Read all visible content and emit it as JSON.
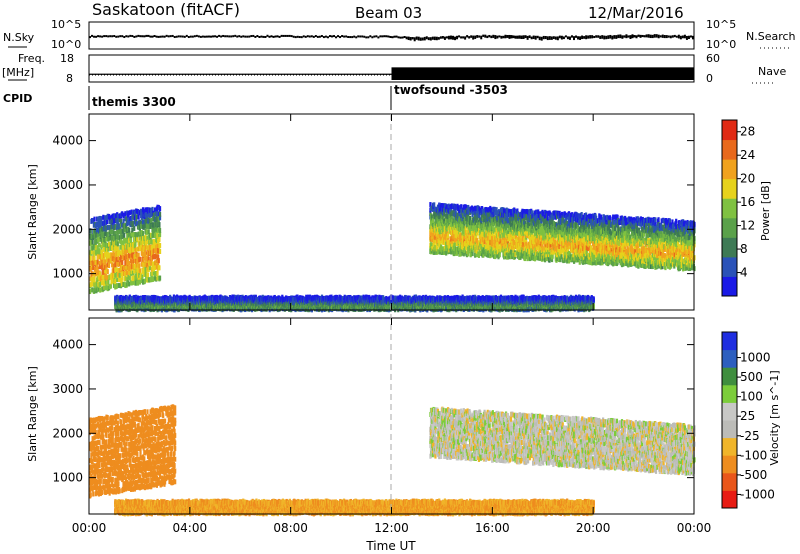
{
  "header": {
    "station": "Saskatoon (fitACF)",
    "beam": "Beam 03",
    "date": "12/Mar/2016"
  },
  "noise_panel": {
    "left_label": "N.Sky",
    "right_label": "N.Search",
    "left_ticks": [
      "10^5",
      "10^0"
    ],
    "right_ticks": [
      "10^5",
      "10^0"
    ]
  },
  "freq_panel": {
    "left_label_1": "Freq.",
    "left_label_2": "[MHz]",
    "right_label": "Nave",
    "left_ticks": [
      "18",
      "8"
    ],
    "right_ticks": [
      "60",
      "0"
    ]
  },
  "cpid": {
    "label": "CPID",
    "programs": [
      {
        "name": "themis 3300",
        "start_hour": 0
      },
      {
        "name": "twofsound -3503",
        "start_hour": 12
      }
    ]
  },
  "time_axis": {
    "label": "Time UT",
    "ticks": [
      "00:00",
      "04:00",
      "08:00",
      "12:00",
      "16:00",
      "20:00",
      "00:00"
    ]
  },
  "colors": {
    "power": [
      "#1a1ae6",
      "#2a52b8",
      "#3e7a55",
      "#5aa14a",
      "#7fc141",
      "#e6d21c",
      "#f0a21e",
      "#e8691c",
      "#e02a14"
    ],
    "velocity": [
      "#e81c14",
      "#e9561a",
      "#ee8d1f",
      "#f0b52a",
      "#bcbcb8",
      "#c8c8c6",
      "#7ccd3a",
      "#3f8e3e",
      "#2d5fbf",
      "#1f2ee0"
    ]
  },
  "chart_data": [
    {
      "type": "line",
      "name": "noise",
      "x_label": "Time UT",
      "x_range_hours": [
        0,
        24
      ],
      "series": [
        {
          "name": "N.Sky",
          "x": [
            0,
            4,
            8,
            12,
            13,
            14,
            16,
            18,
            20,
            22,
            24
          ],
          "y_log10": [
            2.4,
            2.4,
            2.4,
            2.3,
            2.0,
            2.2,
            2.5,
            2.2,
            2.4,
            2.6,
            2.4
          ]
        }
      ]
    },
    {
      "type": "line",
      "name": "frequency",
      "x_range_hours": [
        0,
        24
      ],
      "series": [
        {
          "name": "Freq.",
          "x": [
            0,
            12,
            12,
            24
          ],
          "y": [
            10.5,
            10.5,
            13.5,
            13.5
          ]
        },
        {
          "name": "Nave",
          "x": [
            0,
            12,
            12,
            24
          ],
          "y": [
            13,
            13,
            45,
            45
          ]
        }
      ]
    },
    {
      "type": "heatmap",
      "name": "power",
      "ylabel": "Slant Range [km]",
      "xlabel": "Time UT",
      "ylim": [
        180,
        4600
      ],
      "yticks": [
        1000,
        2000,
        3000,
        4000
      ],
      "x_range_hours": [
        0,
        24
      ],
      "colorbar": {
        "label": "Power [dB]",
        "ticks": [
          4,
          8,
          12,
          16,
          20,
          24,
          28
        ],
        "range": [
          0,
          30
        ]
      },
      "regions": [
        {
          "t0": 0.0,
          "t1": 2.8,
          "r_lo_start": 600,
          "r_lo_end": 900,
          "r_hi_start": 2300,
          "r_hi_end": 2600,
          "power_peak": 24
        },
        {
          "t0": 13.5,
          "t1": 24.0,
          "r_lo_start": 1500,
          "r_lo_end": 1100,
          "r_hi_start": 2600,
          "r_hi_end": 2200,
          "power_peak": 22
        },
        {
          "t0": 1.0,
          "t1": 20.0,
          "r_lo_start": 200,
          "r_lo_end": 200,
          "r_hi_start": 450,
          "r_hi_end": 450,
          "power_peak": 12
        }
      ]
    },
    {
      "type": "heatmap",
      "name": "velocity",
      "ylabel": "Slant Range [km]",
      "xlabel": "Time UT",
      "ylim": [
        180,
        4600
      ],
      "yticks": [
        1000,
        2000,
        3000,
        4000
      ],
      "x_range_hours": [
        0,
        24
      ],
      "colorbar": {
        "label": "Velocity [m s^-1]",
        "ticks": [
          1000,
          500,
          100,
          25,
          -25,
          -100,
          -500,
          -1000
        ]
      },
      "regions": [
        {
          "t0": 0.0,
          "t1": 3.4,
          "r_lo_start": 600,
          "r_lo_end": 900,
          "r_hi_start": 2400,
          "r_hi_end": 2700,
          "velocity": -300
        },
        {
          "t0": 13.5,
          "t1": 24.0,
          "r_lo_start": 1500,
          "r_lo_end": 1100,
          "r_hi_start": 2600,
          "r_hi_end": 2200,
          "velocity": 0
        },
        {
          "t0": 1.0,
          "t1": 20.0,
          "r_lo_start": 200,
          "r_lo_end": 200,
          "r_hi_start": 450,
          "r_hi_end": 450,
          "velocity": -100
        }
      ]
    }
  ]
}
